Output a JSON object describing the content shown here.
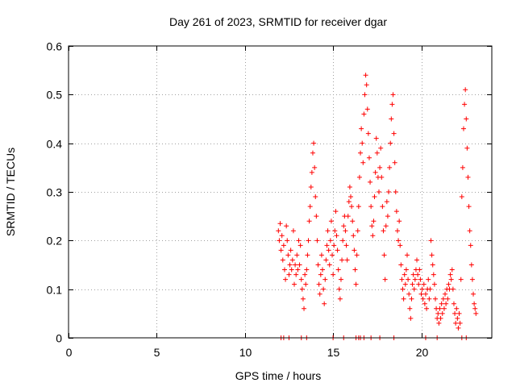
{
  "chart_data": {
    "type": "scatter",
    "title": "Day 261 of 2023, SRMTID for receiver dgar",
    "xlabel": "GPS time / hours",
    "ylabel": "SRMTID / TECUs",
    "xlim": [
      0,
      24
    ],
    "ylim": [
      0,
      0.6
    ],
    "xticks": [
      0,
      5,
      10,
      15,
      20
    ],
    "yticks": [
      0,
      0.1,
      0.2,
      0.3,
      0.4,
      0.5,
      0.6
    ],
    "xtick_labels": [
      "0",
      "5",
      "10",
      "15",
      "20"
    ],
    "ytick_labels": [
      "0",
      "0.1",
      "0.2",
      "0.3",
      "0.4",
      "0.5",
      "0.6"
    ],
    "grid": true,
    "marker": "+",
    "color": "#ff0000",
    "series": [
      {
        "name": "SRMTID",
        "points": [
          [
            11.9,
            0.22
          ],
          [
            11.95,
            0.2
          ],
          [
            12.0,
            0.235
          ],
          [
            12.05,
            0.18
          ],
          [
            12.1,
            0.21
          ],
          [
            12.15,
            0.16
          ],
          [
            12.2,
            0.19
          ],
          [
            12.25,
            0.14
          ],
          [
            12.3,
            0.12
          ],
          [
            12.35,
            0.23
          ],
          [
            12.4,
            0.2
          ],
          [
            12.45,
            0.17
          ],
          [
            12.5,
            0.13
          ],
          [
            12.55,
            0.15
          ],
          [
            12.6,
            0.18
          ],
          [
            12.65,
            0.14
          ],
          [
            12.7,
            0.16
          ],
          [
            12.75,
            0.22
          ],
          [
            12.8,
            0.11
          ],
          [
            12.85,
            0.15
          ],
          [
            12.9,
            0.13
          ],
          [
            12.95,
            0.17
          ],
          [
            13.0,
            0.14
          ],
          [
            13.05,
            0.2
          ],
          [
            13.1,
            0.15
          ],
          [
            13.15,
            0.19
          ],
          [
            13.2,
            0.12
          ],
          [
            13.25,
            0.1
          ],
          [
            13.3,
            0.08
          ],
          [
            13.35,
            0.06
          ],
          [
            13.4,
            0.13
          ],
          [
            13.45,
            0.11
          ],
          [
            13.5,
            0.14
          ],
          [
            13.55,
            0.17
          ],
          [
            13.6,
            0.2
          ],
          [
            13.65,
            0.24
          ],
          [
            13.7,
            0.27
          ],
          [
            13.75,
            0.31
          ],
          [
            13.8,
            0.34
          ],
          [
            13.85,
            0.38
          ],
          [
            13.9,
            0.4
          ],
          [
            13.95,
            0.35
          ],
          [
            14.0,
            0.29
          ],
          [
            14.05,
            0.25
          ],
          [
            14.1,
            0.2
          ],
          [
            14.15,
            0.15
          ],
          [
            14.2,
            0.11
          ],
          [
            14.25,
            0.09
          ],
          [
            14.3,
            0.13
          ],
          [
            14.35,
            0.17
          ],
          [
            14.4,
            0.14
          ],
          [
            14.45,
            0.1
          ],
          [
            14.5,
            0.07
          ],
          [
            14.55,
            0.12
          ],
          [
            14.6,
            0.16
          ],
          [
            14.65,
            0.19
          ],
          [
            14.7,
            0.22
          ],
          [
            14.75,
            0.18
          ],
          [
            14.8,
            0.15
          ],
          [
            14.85,
            0.2
          ],
          [
            14.9,
            0.24
          ],
          [
            14.95,
            0.17
          ],
          [
            15.0,
            0.13
          ],
          [
            15.05,
            0.19
          ],
          [
            15.1,
            0.22
          ],
          [
            15.15,
            0.26
          ],
          [
            15.2,
            0.21
          ],
          [
            15.25,
            0.18
          ],
          [
            15.3,
            0.14
          ],
          [
            15.35,
            0.1
          ],
          [
            15.4,
            0.08
          ],
          [
            15.45,
            0.12
          ],
          [
            15.5,
            0.16
          ],
          [
            15.55,
            0.2
          ],
          [
            15.6,
            0.23
          ],
          [
            15.65,
            0.25
          ],
          [
            15.7,
            0.22
          ],
          [
            15.75,
            0.19
          ],
          [
            15.8,
            0.16
          ],
          [
            15.85,
            0.25
          ],
          [
            15.9,
            0.28
          ],
          [
            15.95,
            0.31
          ],
          [
            16.0,
            0.29
          ],
          [
            16.05,
            0.27
          ],
          [
            16.1,
            0.24
          ],
          [
            16.15,
            0.21
          ],
          [
            16.2,
            0.18
          ],
          [
            16.25,
            0.14
          ],
          [
            16.3,
            0.11
          ],
          [
            16.35,
            0.17
          ],
          [
            16.4,
            0.22
          ],
          [
            16.45,
            0.27
          ],
          [
            16.5,
            0.33
          ],
          [
            16.55,
            0.38
          ],
          [
            16.6,
            0.43
          ],
          [
            16.65,
            0.4
          ],
          [
            16.7,
            0.36
          ],
          [
            16.75,
            0.46
          ],
          [
            16.8,
            0.5
          ],
          [
            16.85,
            0.54
          ],
          [
            16.9,
            0.52
          ],
          [
            16.95,
            0.47
          ],
          [
            17.0,
            0.42
          ],
          [
            17.05,
            0.37
          ],
          [
            17.1,
            0.32
          ],
          [
            17.15,
            0.27
          ],
          [
            17.2,
            0.23
          ],
          [
            17.25,
            0.21
          ],
          [
            17.3,
            0.24
          ],
          [
            17.35,
            0.29
          ],
          [
            17.4,
            0.34
          ],
          [
            17.45,
            0.41
          ],
          [
            17.5,
            0.38
          ],
          [
            17.55,
            0.33
          ],
          [
            17.6,
            0.3
          ],
          [
            17.65,
            0.35
          ],
          [
            17.7,
            0.39
          ],
          [
            17.75,
            0.33
          ],
          [
            17.8,
            0.27
          ],
          [
            17.85,
            0.22
          ],
          [
            17.9,
            0.17
          ],
          [
            17.95,
            0.12
          ],
          [
            18.0,
            0.23
          ],
          [
            18.05,
            0.28
          ],
          [
            18.1,
            0.25
          ],
          [
            18.15,
            0.3
          ],
          [
            18.2,
            0.35
          ],
          [
            18.25,
            0.4
          ],
          [
            18.3,
            0.45
          ],
          [
            18.35,
            0.48
          ],
          [
            18.4,
            0.5
          ],
          [
            18.45,
            0.42
          ],
          [
            18.5,
            0.36
          ],
          [
            18.55,
            0.3
          ],
          [
            18.6,
            0.26
          ],
          [
            18.65,
            0.22
          ],
          [
            18.7,
            0.2
          ],
          [
            18.75,
            0.24
          ],
          [
            18.8,
            0.19
          ],
          [
            18.85,
            0.15
          ],
          [
            18.9,
            0.12
          ],
          [
            18.95,
            0.1
          ],
          [
            19.0,
            0.08
          ],
          [
            19.05,
            0.13
          ],
          [
            19.1,
            0.11
          ],
          [
            19.15,
            0.14
          ],
          [
            19.2,
            0.17
          ],
          [
            19.25,
            0.12
          ],
          [
            19.3,
            0.09
          ],
          [
            19.35,
            0.06
          ],
          [
            19.4,
            0.04
          ],
          [
            19.45,
            0.08
          ],
          [
            19.5,
            0.11
          ],
          [
            19.55,
            0.13
          ],
          [
            19.6,
            0.1
          ],
          [
            19.65,
            0.12
          ],
          [
            19.7,
            0.14
          ],
          [
            19.75,
            0.16
          ],
          [
            19.8,
            0.13
          ],
          [
            19.85,
            0.11
          ],
          [
            19.9,
            0.14
          ],
          [
            19.95,
            0.12
          ],
          [
            20.0,
            0.09
          ],
          [
            20.05,
            0.1
          ],
          [
            20.1,
            0.08
          ],
          [
            20.15,
            0.11
          ],
          [
            20.2,
            0.07
          ],
          [
            20.25,
            0.09
          ],
          [
            20.3,
            0.06
          ],
          [
            20.35,
            0.1
          ],
          [
            20.4,
            0.12
          ],
          [
            20.45,
            0.08
          ],
          [
            20.5,
            0.1
          ],
          [
            20.55,
            0.2
          ],
          [
            20.6,
            0.17
          ],
          [
            20.65,
            0.15
          ],
          [
            20.7,
            0.13
          ],
          [
            20.75,
            0.11
          ],
          [
            20.8,
            0.08
          ],
          [
            20.85,
            0.06
          ],
          [
            20.9,
            0.04
          ],
          [
            20.95,
            0.05
          ],
          [
            21.0,
            0.03
          ],
          [
            21.05,
            0.06
          ],
          [
            21.1,
            0.04
          ],
          [
            21.15,
            0.07
          ],
          [
            21.2,
            0.05
          ],
          [
            21.25,
            0.08
          ],
          [
            21.3,
            0.06
          ],
          [
            21.35,
            0.09
          ],
          [
            21.4,
            0.07
          ],
          [
            21.45,
            0.1
          ],
          [
            21.5,
            0.08
          ],
          [
            21.55,
            0.11
          ],
          [
            21.6,
            0.1
          ],
          [
            21.65,
            0.13
          ],
          [
            21.7,
            0.12
          ],
          [
            21.75,
            0.14
          ],
          [
            21.8,
            0.1
          ],
          [
            21.85,
            0.07
          ],
          [
            21.9,
            0.05
          ],
          [
            21.95,
            0.03
          ],
          [
            22.0,
            0.06
          ],
          [
            22.05,
            0.04
          ],
          [
            22.1,
            0.02
          ],
          [
            22.15,
            0.05
          ],
          [
            22.2,
            0.03
          ],
          [
            22.25,
            0.12
          ],
          [
            22.3,
            0.29
          ],
          [
            22.35,
            0.35
          ],
          [
            22.4,
            0.43
          ],
          [
            22.45,
            0.48
          ],
          [
            22.5,
            0.51
          ],
          [
            22.55,
            0.45
          ],
          [
            22.6,
            0.39
          ],
          [
            22.65,
            0.33
          ],
          [
            22.7,
            0.27
          ],
          [
            22.75,
            0.22
          ],
          [
            22.8,
            0.19
          ],
          [
            22.85,
            0.15
          ],
          [
            22.9,
            0.12
          ],
          [
            22.95,
            0.09
          ],
          [
            23.0,
            0.07
          ],
          [
            23.05,
            0.06
          ],
          [
            23.1,
            0.05
          ],
          [
            12.05,
            0.0
          ],
          [
            12.2,
            0.0
          ],
          [
            12.5,
            0.0
          ],
          [
            13.2,
            0.0
          ],
          [
            13.5,
            0.0
          ],
          [
            15.0,
            0.0
          ],
          [
            15.6,
            0.0
          ],
          [
            16.3,
            0.0
          ],
          [
            16.45,
            0.0
          ],
          [
            16.55,
            0.0
          ],
          [
            16.75,
            0.0
          ],
          [
            17.15,
            0.0
          ],
          [
            17.65,
            0.0
          ],
          [
            18.45,
            0.0
          ],
          [
            20.25,
            0.0
          ],
          [
            20.9,
            0.0
          ],
          [
            22.3,
            0.0
          ],
          [
            22.55,
            0.0
          ]
        ]
      }
    ]
  }
}
